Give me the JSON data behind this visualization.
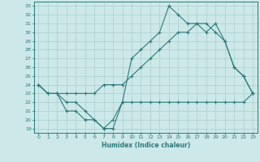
{
  "xlabel": "Humidex (Indice chaleur)",
  "ylabel": "",
  "bg_color": "#cce8e8",
  "grid_color": "#aacfcf",
  "line_color": "#2d7a7a",
  "xlim": [
    -0.5,
    23.5
  ],
  "ylim": [
    18.5,
    33.5
  ],
  "xticks": [
    0,
    1,
    2,
    3,
    4,
    5,
    6,
    7,
    8,
    9,
    10,
    11,
    12,
    13,
    14,
    15,
    16,
    17,
    18,
    19,
    20,
    21,
    22,
    23
  ],
  "yticks": [
    19,
    20,
    21,
    22,
    23,
    24,
    25,
    26,
    27,
    28,
    29,
    30,
    31,
    32,
    33
  ],
  "line1_x": [
    0,
    1,
    2,
    3,
    4,
    5,
    6,
    7,
    8,
    9,
    10,
    11,
    12,
    13,
    14,
    15,
    16,
    17,
    18,
    19,
    20,
    21,
    22,
    23
  ],
  "line1_y": [
    24,
    23,
    23,
    21,
    21,
    20,
    20,
    19,
    19,
    22,
    22,
    22,
    22,
    22,
    22,
    22,
    22,
    22,
    22,
    22,
    22,
    22,
    22,
    23
  ],
  "line2_x": [
    0,
    1,
    2,
    3,
    4,
    5,
    6,
    7,
    8,
    9,
    10,
    11,
    12,
    13,
    14,
    15,
    16,
    17,
    18,
    19,
    20,
    21,
    22,
    23
  ],
  "line2_y": [
    24,
    23,
    23,
    23,
    23,
    23,
    23,
    24,
    24,
    24,
    25,
    26,
    27,
    28,
    29,
    30,
    30,
    31,
    31,
    30,
    29,
    26,
    25,
    23
  ],
  "line3_x": [
    0,
    1,
    2,
    3,
    4,
    5,
    6,
    7,
    8,
    9,
    10,
    11,
    12,
    13,
    14,
    15,
    16,
    17,
    18,
    19,
    20,
    21,
    22,
    23
  ],
  "line3_y": [
    24,
    23,
    23,
    22,
    22,
    21,
    20,
    19,
    20,
    22,
    27,
    28,
    29,
    30,
    33,
    32,
    31,
    31,
    30,
    31,
    29,
    26,
    25,
    23
  ]
}
